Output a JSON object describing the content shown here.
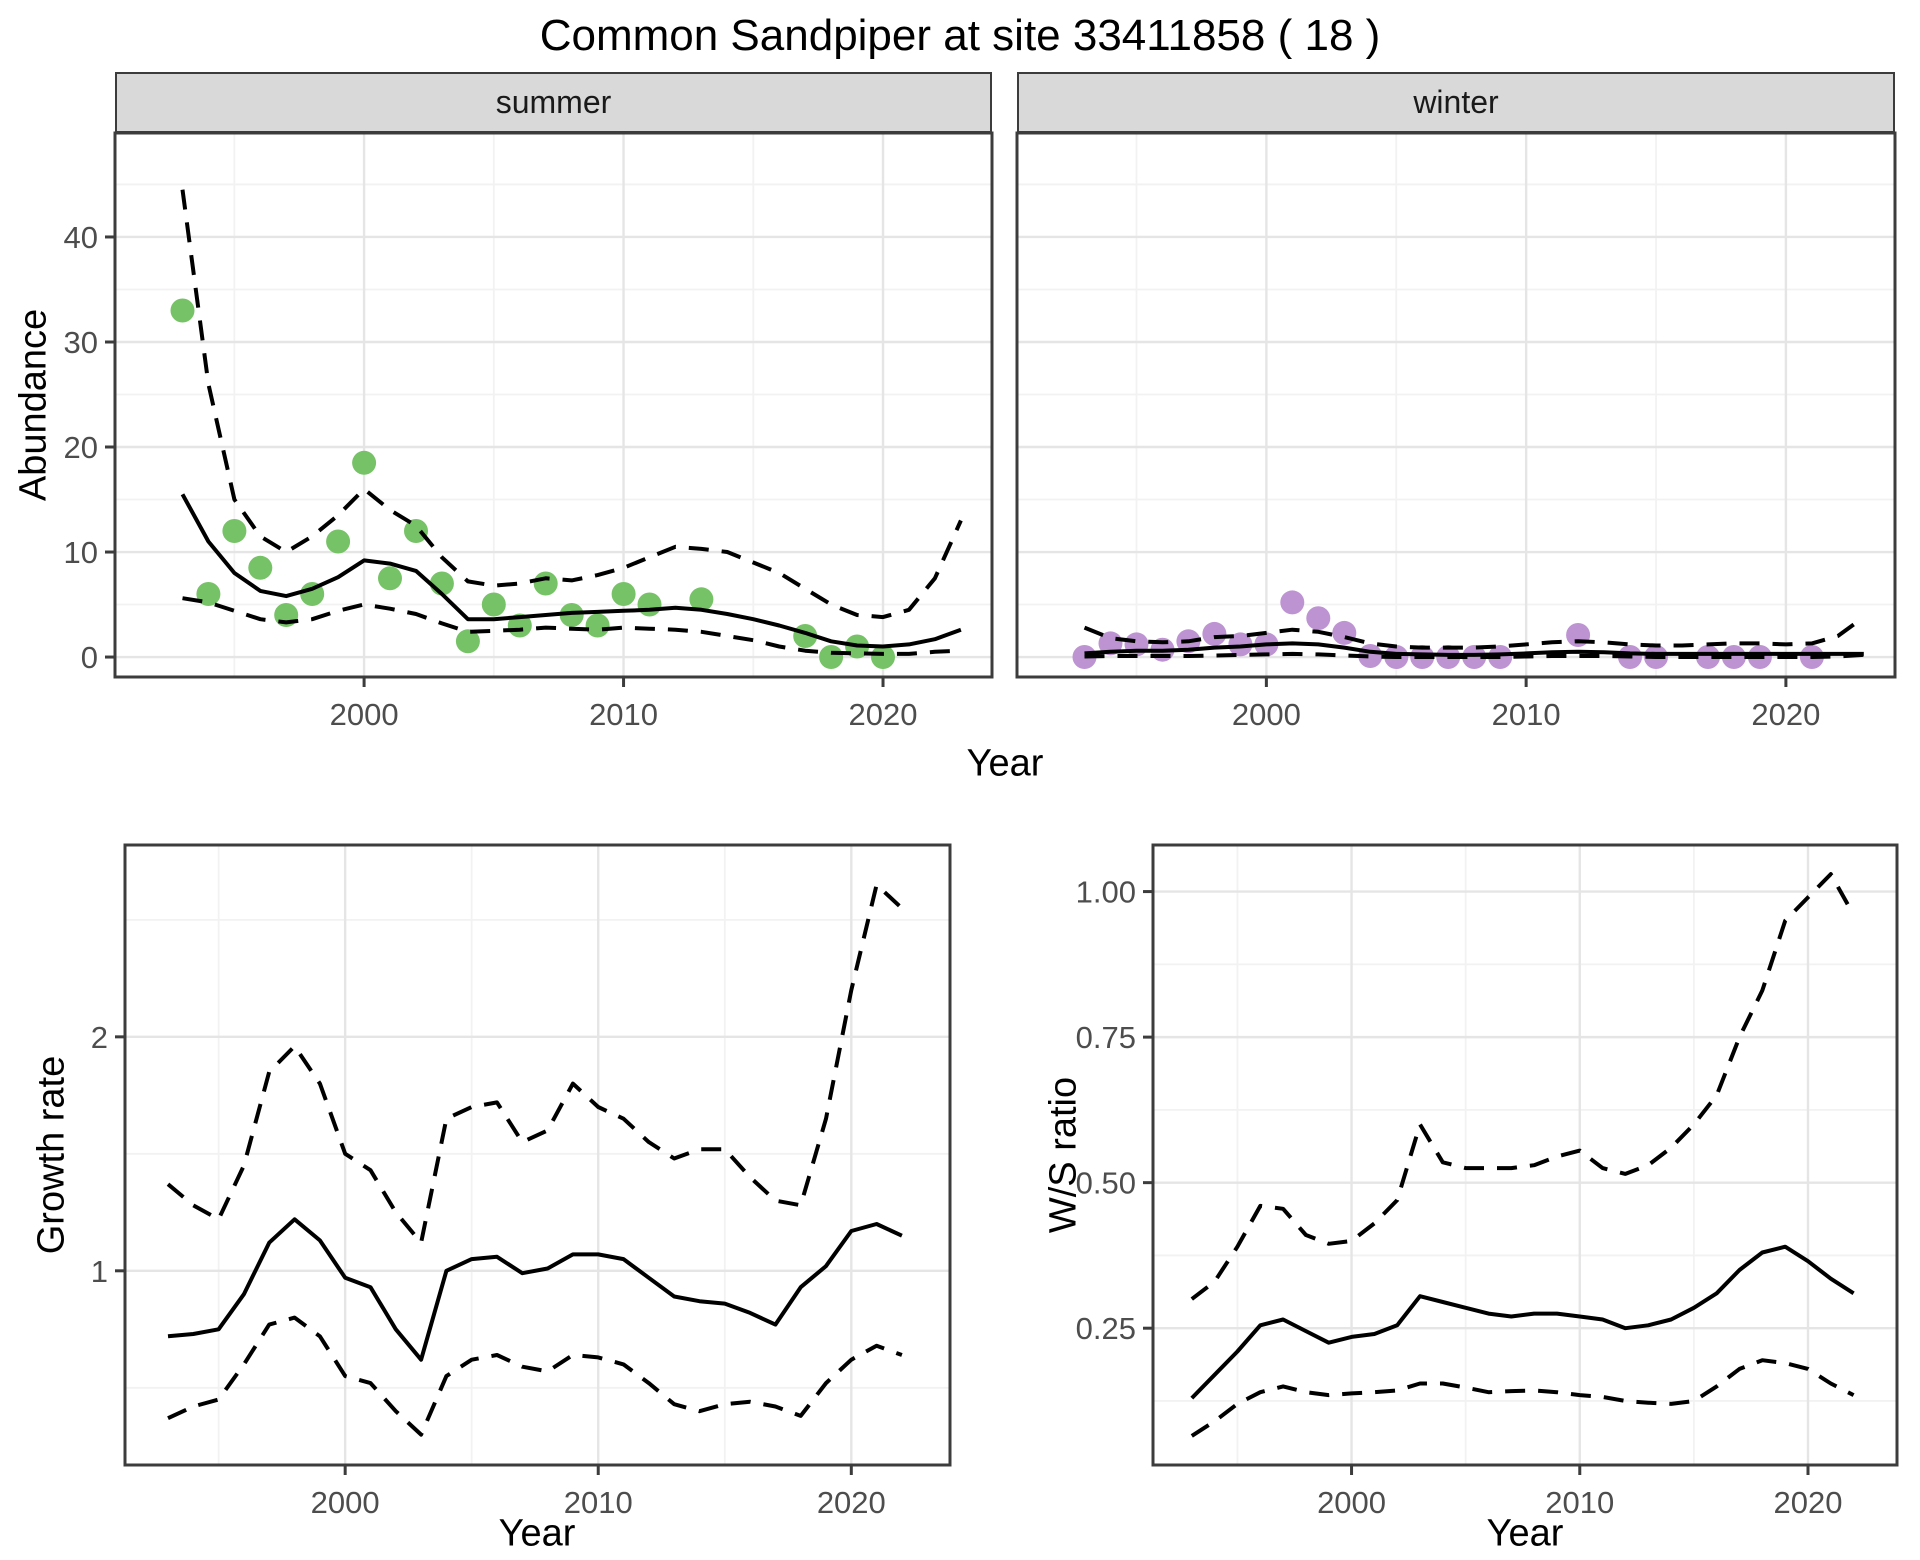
{
  "title": "Common Sandpiper at site 33411858 ( 18 )",
  "colors": {
    "summer_point": "#76c266",
    "winter_point": "#bd93d2",
    "trend_line": "#000000",
    "ci_line": "#000000",
    "grid_major": "#e5e5e5",
    "grid_minor": "#f2f2f2",
    "panel_border": "#3c3c3c",
    "strip_bg": "#d9d9d9",
    "tick_label": "#4d4d4d"
  },
  "chart_data": [
    {
      "id": "summer",
      "type": "line+scatter",
      "facet_label": "summer",
      "xlabel": "Year",
      "ylabel": "Abundance",
      "xlim": [
        1990.4,
        2024.2
      ],
      "ylim": [
        -1.9,
        49.9
      ],
      "xticks": [
        2000,
        2010,
        2020
      ],
      "xtick_labels": [
        "2000",
        "2010",
        "2020"
      ],
      "xticks_minor": [
        1995,
        2005,
        2015
      ],
      "yticks": [
        0,
        10,
        20,
        30,
        40
      ],
      "ytick_labels": [
        "0",
        "10",
        "20",
        "30",
        "40"
      ],
      "yticks_minor": [
        5,
        15,
        25,
        35,
        45
      ],
      "point_color": "#76c266",
      "points": {
        "x": [
          1993,
          1994,
          1995,
          1996,
          1997,
          1998,
          1999,
          2000,
          2001,
          2002,
          2003,
          2004,
          2005,
          2006,
          2007,
          2008,
          2009,
          2010,
          2011,
          2013,
          2017,
          2018,
          2019,
          2020
        ],
        "y": [
          33,
          6,
          12,
          8.5,
          4,
          6,
          11,
          18.5,
          7.5,
          12,
          7,
          1.5,
          5,
          3,
          7,
          4,
          3,
          6,
          5,
          5.5,
          2,
          0,
          1,
          0
        ]
      },
      "series": [
        {
          "name": "fit",
          "style": "solid",
          "x_start": 1993,
          "y": [
            15.5,
            11,
            8,
            6.3,
            5.8,
            6.5,
            7.6,
            9.2,
            8.9,
            8.2,
            6,
            3.6,
            3.6,
            3.8,
            4,
            4.2,
            4.3,
            4.4,
            4.5,
            4.7,
            4.5,
            4.1,
            3.6,
            3,
            2.3,
            1.5,
            1.1,
            1,
            1.2,
            1.7,
            2.6
          ]
        },
        {
          "name": "upper-ci",
          "style": "dashed",
          "x_start": 1993,
          "y": [
            44.5,
            26,
            15,
            11.5,
            10,
            11.5,
            13.5,
            16,
            14,
            12.5,
            9.5,
            7.2,
            6.8,
            7,
            7.5,
            7.3,
            7.8,
            8.5,
            9.5,
            10.5,
            10.3,
            10,
            9,
            8,
            6.5,
            5,
            4,
            3.8,
            4.5,
            7.5,
            13
          ]
        },
        {
          "name": "lower-ci",
          "style": "dashed",
          "x_start": 1993,
          "y": [
            5.6,
            5.2,
            4.4,
            3.6,
            3.3,
            3.6,
            4.4,
            5,
            4.6,
            4.1,
            3.2,
            2.4,
            2.5,
            2.6,
            2.8,
            2.7,
            2.6,
            2.8,
            2.7,
            2.6,
            2.4,
            2,
            1.6,
            1,
            0.6,
            0.4,
            0.35,
            0.3,
            0.3,
            0.5,
            0.6
          ]
        }
      ]
    },
    {
      "id": "winter",
      "type": "line+scatter",
      "facet_label": "winter",
      "xlabel": "Year",
      "ylabel": "",
      "xlim": [
        1990.4,
        2024.2
      ],
      "ylim": [
        -1.9,
        49.9
      ],
      "xticks": [
        2000,
        2010,
        2020
      ],
      "xtick_labels": [
        "2000",
        "2010",
        "2020"
      ],
      "xticks_minor": [
        1995,
        2005,
        2015
      ],
      "yticks": [
        0,
        10,
        20,
        30,
        40
      ],
      "ytick_labels": [
        "0",
        "10",
        "20",
        "30",
        "40"
      ],
      "yticks_minor": [
        5,
        15,
        25,
        35,
        45
      ],
      "point_color": "#bd93d2",
      "points": {
        "x": [
          1993,
          1994,
          1995,
          1996,
          1997,
          1998,
          1999,
          2000,
          2001,
          2002,
          2003,
          2004,
          2005,
          2006,
          2007,
          2008,
          2009,
          2012,
          2014,
          2015,
          2017,
          2018,
          2019,
          2021
        ],
        "y": [
          0,
          1.3,
          1.2,
          0.7,
          1.5,
          2.2,
          1.2,
          1.2,
          5.2,
          3.7,
          2.3,
          0.1,
          0,
          0,
          0,
          0,
          0,
          2.1,
          0,
          0,
          0,
          0,
          0,
          0
        ]
      },
      "series": [
        {
          "name": "fit",
          "style": "solid",
          "x_start": 1993,
          "y": [
            0.35,
            0.5,
            0.6,
            0.6,
            0.7,
            0.9,
            1,
            1.2,
            1.3,
            1.2,
            0.9,
            0.5,
            0.3,
            0.25,
            0.2,
            0.2,
            0.25,
            0.35,
            0.45,
            0.5,
            0.45,
            0.35,
            0.3,
            0.3,
            0.3,
            0.3,
            0.3,
            0.3,
            0.3,
            0.3,
            0.3
          ]
        },
        {
          "name": "upper-ci",
          "style": "dashed",
          "x_start": 1993,
          "y": [
            2.8,
            1.8,
            1.5,
            1.4,
            1.5,
            1.9,
            2,
            2.3,
            2.6,
            2.4,
            1.9,
            1.3,
            1,
            0.9,
            0.9,
            0.9,
            1,
            1.2,
            1.4,
            1.5,
            1.4,
            1.2,
            1.1,
            1.1,
            1.2,
            1.3,
            1.3,
            1.2,
            1.3,
            2,
            3.8
          ]
        },
        {
          "name": "lower-ci",
          "style": "dashed",
          "x_start": 1993,
          "y": [
            0.05,
            0.1,
            0.1,
            0.1,
            0.1,
            0.15,
            0.2,
            0.25,
            0.3,
            0.25,
            0.15,
            0.05,
            0,
            0,
            0,
            0,
            0,
            0.05,
            0.1,
            0.1,
            0.1,
            0.05,
            0,
            0,
            0,
            0,
            0,
            0,
            0,
            0.05,
            0.2
          ]
        }
      ]
    },
    {
      "id": "growth",
      "type": "line",
      "facet_label": "",
      "xlabel": "Year",
      "ylabel": "Growth rate",
      "xlim": [
        1991.3,
        2023.9
      ],
      "ylim": [
        0.17,
        2.82
      ],
      "xticks": [
        2000,
        2010,
        2020
      ],
      "xtick_labels": [
        "2000",
        "2010",
        "2020"
      ],
      "xticks_minor": [
        1995,
        2005,
        2015
      ],
      "yticks": [
        1,
        2
      ],
      "ytick_labels": [
        "1",
        "2"
      ],
      "yticks_minor": [
        0.5,
        1.5,
        2.5
      ],
      "series": [
        {
          "name": "fit",
          "style": "solid",
          "x_start": 1993,
          "y": [
            0.72,
            0.73,
            0.75,
            0.9,
            1.12,
            1.22,
            1.13,
            0.97,
            0.93,
            0.75,
            0.62,
            1,
            1.05,
            1.06,
            0.99,
            1.01,
            1.07,
            1.07,
            1.05,
            0.97,
            0.89,
            0.87,
            0.86,
            0.82,
            0.77,
            0.93,
            1.02,
            1.17,
            1.2,
            1.15
          ]
        },
        {
          "name": "upper-ci",
          "style": "dashed",
          "x_start": 1993,
          "y": [
            1.37,
            1.28,
            1.22,
            1.45,
            1.85,
            1.96,
            1.8,
            1.5,
            1.43,
            1.25,
            1.12,
            1.65,
            1.7,
            1.72,
            1.55,
            1.6,
            1.8,
            1.7,
            1.65,
            1.55,
            1.48,
            1.52,
            1.52,
            1.4,
            1.3,
            1.28,
            1.65,
            2.2,
            2.65,
            2.55
          ]
        },
        {
          "name": "lower-ci",
          "style": "dashed",
          "x_start": 1993,
          "y": [
            0.37,
            0.42,
            0.45,
            0.6,
            0.77,
            0.8,
            0.72,
            0.55,
            0.52,
            0.4,
            0.3,
            0.55,
            0.62,
            0.64,
            0.59,
            0.57,
            0.64,
            0.63,
            0.6,
            0.52,
            0.43,
            0.4,
            0.43,
            0.44,
            0.42,
            0.38,
            0.52,
            0.62,
            0.68,
            0.64
          ]
        }
      ]
    },
    {
      "id": "ws",
      "type": "line",
      "facet_label": "",
      "xlabel": "Year",
      "ylabel": "W/S ratio",
      "xlim": [
        1991.3,
        2023.9
      ],
      "ylim": [
        0.015,
        1.08
      ],
      "xticks": [
        2000,
        2010,
        2020
      ],
      "xtick_labels": [
        "2000",
        "2010",
        "2020"
      ],
      "xticks_minor": [
        1995,
        2005,
        2015
      ],
      "yticks": [
        0.25,
        0.5,
        0.75,
        1
      ],
      "ytick_labels": [
        "0.25",
        "0.50",
        "0.75",
        "1.00"
      ],
      "yticks_minor": [
        0.125,
        0.375,
        0.625,
        0.875
      ],
      "series": [
        {
          "name": "fit",
          "style": "solid",
          "x_start": 1993,
          "y": [
            0.13,
            0.17,
            0.21,
            0.255,
            0.265,
            0.245,
            0.225,
            0.235,
            0.24,
            0.255,
            0.305,
            0.295,
            0.285,
            0.275,
            0.27,
            0.275,
            0.275,
            0.27,
            0.265,
            0.25,
            0.255,
            0.265,
            0.285,
            0.31,
            0.35,
            0.38,
            0.39,
            0.365,
            0.335,
            0.31
          ]
        },
        {
          "name": "upper-ci",
          "style": "dashed",
          "x_start": 1993,
          "y": [
            0.3,
            0.33,
            0.39,
            0.46,
            0.455,
            0.41,
            0.395,
            0.4,
            0.43,
            0.47,
            0.6,
            0.535,
            0.525,
            0.525,
            0.525,
            0.53,
            0.545,
            0.555,
            0.525,
            0.515,
            0.53,
            0.56,
            0.6,
            0.65,
            0.75,
            0.83,
            0.95,
            0.99,
            1.03,
            0.96
          ]
        },
        {
          "name": "lower-ci",
          "style": "dashed",
          "x_start": 1993,
          "y": [
            0.065,
            0.09,
            0.12,
            0.14,
            0.15,
            0.14,
            0.135,
            0.138,
            0.14,
            0.143,
            0.155,
            0.155,
            0.148,
            0.14,
            0.142,
            0.143,
            0.14,
            0.135,
            0.132,
            0.125,
            0.122,
            0.12,
            0.125,
            0.15,
            0.18,
            0.195,
            0.19,
            0.18,
            0.155,
            0.135
          ]
        }
      ]
    }
  ]
}
